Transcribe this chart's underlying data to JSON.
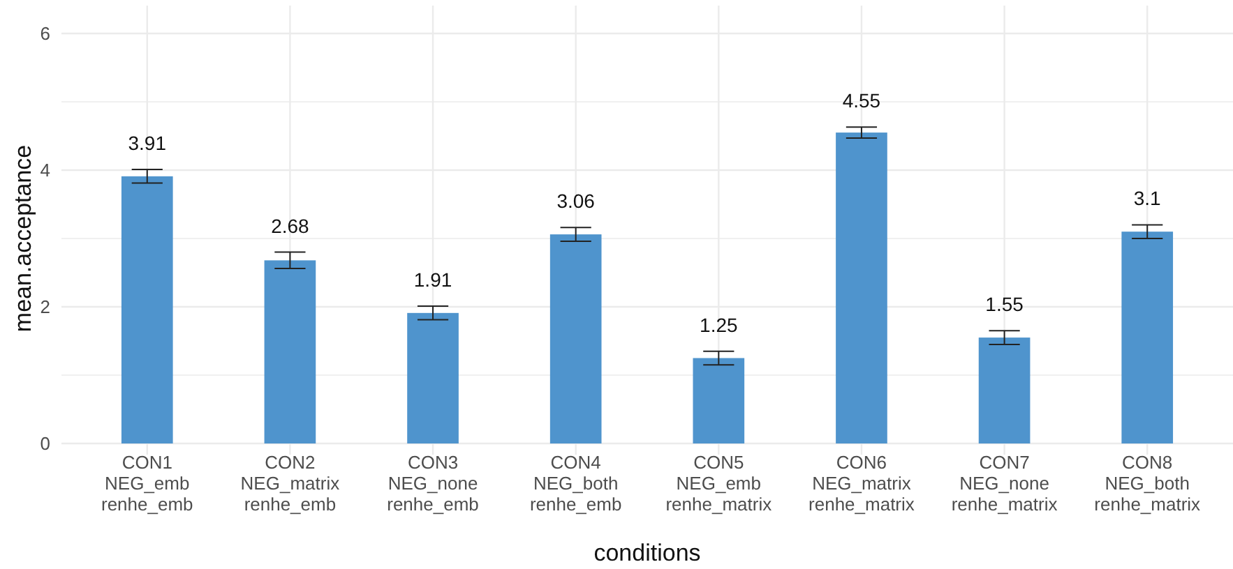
{
  "chart_data": {
    "type": "bar",
    "xlabel": "conditions",
    "ylabel": "mean.acceptance",
    "categories": [
      "CON1\nNEG_emb\nrenhe_emb",
      "CON2\nNEG_matrix\nrenhe_emb",
      "CON3\nNEG_none\nrenhe_emb",
      "CON4\nNEG_both\nrenhe_emb",
      "CON5\nNEG_emb\nrenhe_matrix",
      "CON6\nNEG_matrix\nrenhe_matrix",
      "CON7\nNEG_none\nrenhe_matrix",
      "CON8\nNEG_both\nrenhe_matrix"
    ],
    "values": [
      3.91,
      2.68,
      1.91,
      3.06,
      1.25,
      4.55,
      1.55,
      3.1
    ],
    "errors": [
      0.1,
      0.12,
      0.1,
      0.1,
      0.1,
      0.08,
      0.1,
      0.1
    ],
    "color": "#4f94cd",
    "data_labels": true,
    "ylim": [
      0,
      6
    ],
    "yticks": [
      0,
      {
        "value": 1,
        "label": null
      },
      2,
      {
        "value": 3,
        "label": null
      },
      4,
      {
        "value": 5,
        "label": null
      },
      6
    ],
    "grid": true
  }
}
